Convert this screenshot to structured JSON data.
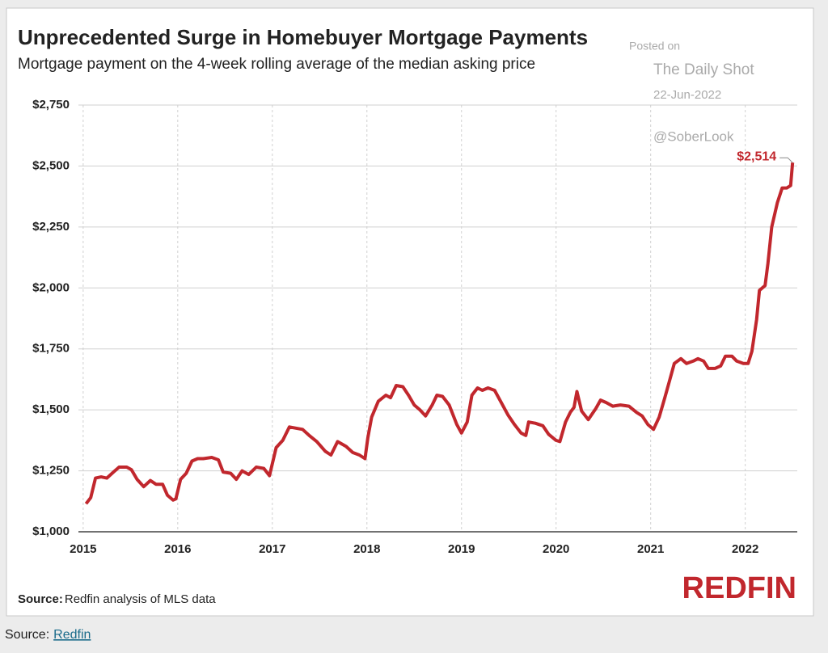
{
  "chart_data": {
    "type": "line",
    "title": "Unprecedented Surge in Homebuyer Mortgage Payments",
    "subtitle": "Mortgage payment on the 4-week rolling average of the median asking price",
    "watermark": [
      "Posted on",
      "The Daily Shot",
      "22-Jun-2022",
      "@SoberLook"
    ],
    "source_label": "Source:",
    "source_text": "Redfin analysis of MLS data",
    "logo": "REDFIN",
    "footer": {
      "label": "Source:",
      "link": "Redfin"
    },
    "grid": true,
    "xlim": [
      2014.95,
      2022.55
    ],
    "xticks": [
      2015,
      2016,
      2017,
      2018,
      2019,
      2020,
      2021,
      2022
    ],
    "ylim": [
      1000,
      2750
    ],
    "yticks": [
      {
        "value": 1000,
        "label": "$1,000"
      },
      {
        "value": 1250,
        "label": "$1,250"
      },
      {
        "value": 1500,
        "label": "$1,500"
      },
      {
        "value": 1750,
        "label": "$1,750"
      },
      {
        "value": 2000,
        "label": "$2,000"
      },
      {
        "value": 2250,
        "label": "$2,250"
      },
      {
        "value": 2500,
        "label": "$2,500"
      },
      {
        "value": 2750,
        "label": "$2,750"
      }
    ],
    "x": [
      2015.03,
      2015.08,
      2015.13,
      2015.19,
      2015.25,
      2015.32,
      2015.38,
      2015.46,
      2015.51,
      2015.57,
      2015.64,
      2015.71,
      2015.77,
      2015.84,
      2015.89,
      2015.95,
      2015.98,
      2016.03,
      2016.09,
      2016.15,
      2016.21,
      2016.27,
      2016.36,
      2016.43,
      2016.48,
      2016.56,
      2016.62,
      2016.68,
      2016.75,
      2016.83,
      2016.91,
      2016.97,
      2017.04,
      2017.11,
      2017.18,
      2017.25,
      2017.32,
      2017.39,
      2017.47,
      2017.56,
      2017.62,
      2017.69,
      2017.78,
      2017.85,
      2017.92,
      2017.98,
      2018.01,
      2018.05,
      2018.12,
      2018.2,
      2018.25,
      2018.31,
      2018.38,
      2018.44,
      2018.5,
      2018.56,
      2018.62,
      2018.69,
      2018.74,
      2018.8,
      2018.87,
      2018.95,
      2019.0,
      2019.06,
      2019.11,
      2019.17,
      2019.22,
      2019.28,
      2019.35,
      2019.42,
      2019.49,
      2019.56,
      2019.63,
      2019.68,
      2019.71,
      2019.78,
      2019.86,
      2019.92,
      2020.0,
      2020.04,
      2020.1,
      2020.15,
      2020.19,
      2020.22,
      2020.27,
      2020.34,
      2020.42,
      2020.47,
      2020.53,
      2020.6,
      2020.68,
      2020.77,
      2020.85,
      2020.91,
      2020.97,
      2021.03,
      2021.09,
      2021.15,
      2021.2,
      2021.25,
      2021.32,
      2021.38,
      2021.45,
      2021.5,
      2021.56,
      2021.61,
      2021.68,
      2021.74,
      2021.79,
      2021.86,
      2021.91,
      2021.98,
      2022.03,
      2022.07,
      2022.12,
      2022.15,
      2022.21,
      2022.24,
      2022.28,
      2022.34,
      2022.39,
      2022.44,
      2022.48,
      2022.5
    ],
    "series": [
      {
        "color": "#c1272d",
        "values": [
          1115,
          1140,
          1220,
          1225,
          1220,
          1245,
          1265,
          1265,
          1255,
          1215,
          1185,
          1210,
          1195,
          1195,
          1150,
          1130,
          1135,
          1215,
          1240,
          1290,
          1300,
          1300,
          1305,
          1295,
          1245,
          1240,
          1215,
          1250,
          1235,
          1265,
          1260,
          1230,
          1345,
          1375,
          1430,
          1425,
          1420,
          1395,
          1370,
          1330,
          1315,
          1370,
          1350,
          1325,
          1315,
          1300,
          1385,
          1470,
          1535,
          1560,
          1550,
          1600,
          1595,
          1560,
          1520,
          1500,
          1475,
          1520,
          1560,
          1555,
          1520,
          1440,
          1405,
          1450,
          1560,
          1590,
          1580,
          1590,
          1580,
          1530,
          1480,
          1440,
          1405,
          1395,
          1450,
          1445,
          1435,
          1400,
          1375,
          1370,
          1450,
          1490,
          1510,
          1575,
          1495,
          1460,
          1505,
          1540,
          1530,
          1515,
          1520,
          1515,
          1490,
          1475,
          1440,
          1420,
          1470,
          1550,
          1620,
          1690,
          1710,
          1690,
          1700,
          1710,
          1700,
          1670,
          1670,
          1680,
          1720,
          1720,
          1700,
          1690,
          1690,
          1740,
          1870,
          1990,
          2010,
          2100,
          2250,
          2350,
          2410,
          2410,
          2420,
          2514
        ],
        "value_labels": [
          null,
          null,
          null,
          null,
          null,
          null,
          null,
          null,
          null,
          null,
          null,
          null,
          null,
          null,
          null,
          null,
          null,
          null,
          null,
          null,
          null,
          null,
          null,
          null,
          null,
          null,
          null,
          null,
          null,
          null,
          null,
          null,
          null,
          null,
          null,
          null,
          null,
          null,
          null,
          null,
          null,
          null,
          null,
          null,
          null,
          null,
          null,
          null,
          null,
          null,
          null,
          null,
          null,
          null,
          null,
          null,
          null,
          null,
          null,
          null,
          null,
          null,
          null,
          null,
          null,
          null,
          null,
          null,
          null,
          null,
          null,
          null,
          null,
          null,
          null,
          null,
          null,
          null,
          null,
          null,
          null,
          null,
          null,
          null,
          null,
          null,
          null,
          null,
          null,
          null,
          null,
          null,
          null,
          null,
          null,
          null,
          null,
          null,
          null,
          null,
          null,
          null,
          null,
          null,
          null,
          null,
          null,
          null,
          null,
          null,
          null,
          null,
          null,
          null,
          null,
          null,
          null,
          null,
          null,
          null,
          null,
          null,
          null,
          "$2,514"
        ]
      }
    ]
  }
}
